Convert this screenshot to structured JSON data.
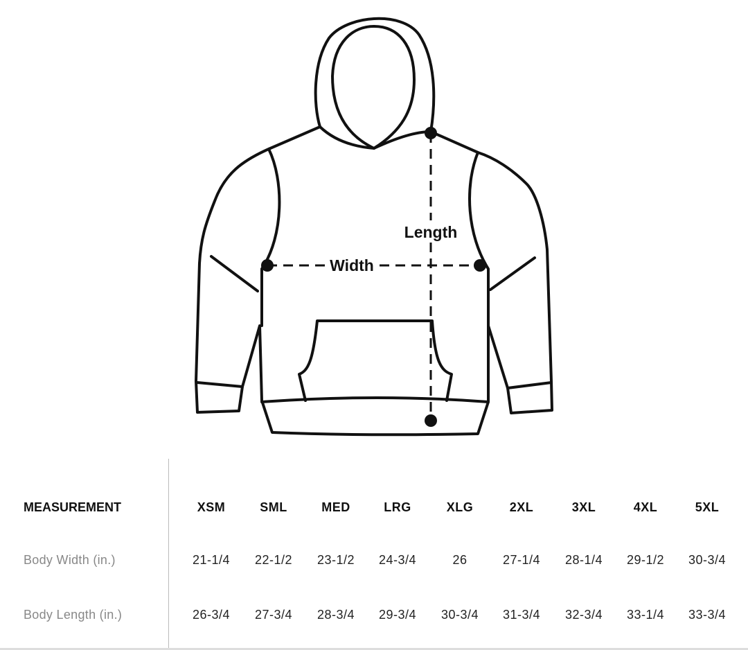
{
  "diagram": {
    "width_label": "Width",
    "length_label": "Length"
  },
  "table": {
    "header_label": "MEASUREMENT",
    "sizes": [
      "XSM",
      "SML",
      "MED",
      "LRG",
      "XLG",
      "2XL",
      "3XL",
      "4XL",
      "5XL"
    ],
    "rows": [
      {
        "label": "Body Width (in.)",
        "values": [
          "21-1/4",
          "22-1/2",
          "23-1/2",
          "24-3/4",
          "26",
          "27-1/4",
          "28-1/4",
          "29-1/2",
          "30-3/4"
        ]
      },
      {
        "label": "Body Length (in.)",
        "values": [
          "26-3/4",
          "27-3/4",
          "28-3/4",
          "29-3/4",
          "30-3/4",
          "31-3/4",
          "32-3/4",
          "33-1/4",
          "33-3/4"
        ]
      }
    ]
  }
}
